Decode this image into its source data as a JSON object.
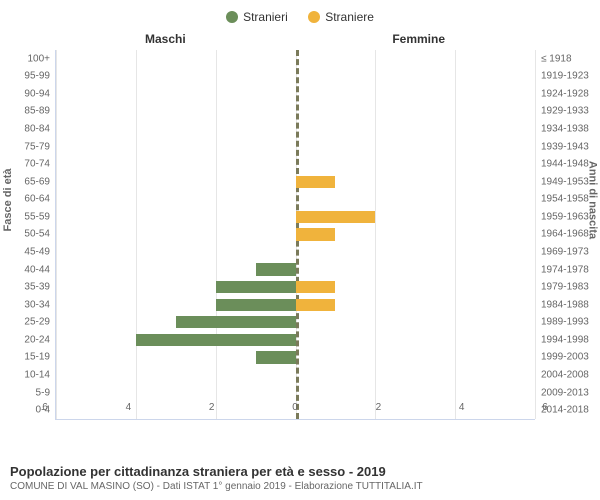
{
  "chart": {
    "type": "population-pyramid",
    "legend": [
      {
        "label": "Stranieri",
        "color": "#6b8e5a"
      },
      {
        "label": "Straniere",
        "color": "#f0b33c"
      }
    ],
    "column_headers": {
      "left": "Maschi",
      "right": "Femmine"
    },
    "y_axis_left_label": "Fasce di età",
    "y_axis_right_label": "Anni di nascita",
    "x_axis": {
      "min": -6,
      "max": 6,
      "ticks": [
        6,
        4,
        2,
        0,
        2,
        4,
        6
      ],
      "tick_positions_pct": [
        0,
        16.67,
        33.33,
        50,
        66.67,
        83.33,
        100
      ]
    },
    "grid_color": "#e6e6e6",
    "zero_line_color": "#7a7a5a",
    "background_color": "#ffffff",
    "row_height_pct": 4.76,
    "bar_colors": {
      "male": "#6b8e5a",
      "female": "#f0b33c"
    },
    "age_groups": [
      {
        "age": "100+",
        "birth": "≤ 1918",
        "male": 0,
        "female": 0
      },
      {
        "age": "95-99",
        "birth": "1919-1923",
        "male": 0,
        "female": 0
      },
      {
        "age": "90-94",
        "birth": "1924-1928",
        "male": 0,
        "female": 0
      },
      {
        "age": "85-89",
        "birth": "1929-1933",
        "male": 0,
        "female": 0
      },
      {
        "age": "80-84",
        "birth": "1934-1938",
        "male": 0,
        "female": 0
      },
      {
        "age": "75-79",
        "birth": "1939-1943",
        "male": 0,
        "female": 0
      },
      {
        "age": "70-74",
        "birth": "1944-1948",
        "male": 0,
        "female": 0
      },
      {
        "age": "65-69",
        "birth": "1949-1953",
        "male": 0,
        "female": 1
      },
      {
        "age": "60-64",
        "birth": "1954-1958",
        "male": 0,
        "female": 0
      },
      {
        "age": "55-59",
        "birth": "1959-1963",
        "male": 0,
        "female": 2
      },
      {
        "age": "50-54",
        "birth": "1964-1968",
        "male": 0,
        "female": 1
      },
      {
        "age": "45-49",
        "birth": "1969-1973",
        "male": 0,
        "female": 0
      },
      {
        "age": "40-44",
        "birth": "1974-1978",
        "male": 1,
        "female": 0
      },
      {
        "age": "35-39",
        "birth": "1979-1983",
        "male": 2,
        "female": 1
      },
      {
        "age": "30-34",
        "birth": "1984-1988",
        "male": 2,
        "female": 1
      },
      {
        "age": "25-29",
        "birth": "1989-1993",
        "male": 3,
        "female": 0
      },
      {
        "age": "20-24",
        "birth": "1994-1998",
        "male": 4,
        "female": 0
      },
      {
        "age": "15-19",
        "birth": "1999-2003",
        "male": 1,
        "female": 0
      },
      {
        "age": "10-14",
        "birth": "2004-2008",
        "male": 0,
        "female": 0
      },
      {
        "age": "5-9",
        "birth": "2009-2013",
        "male": 0,
        "female": 0
      },
      {
        "age": "0-4",
        "birth": "2014-2018",
        "male": 0,
        "female": 0
      }
    ],
    "footer_title": "Popolazione per cittadinanza straniera per età e sesso - 2019",
    "footer_sub": "COMUNE DI VAL MASINO (SO) - Dati ISTAT 1° gennaio 2019 - Elaborazione TUTTITALIA.IT"
  }
}
